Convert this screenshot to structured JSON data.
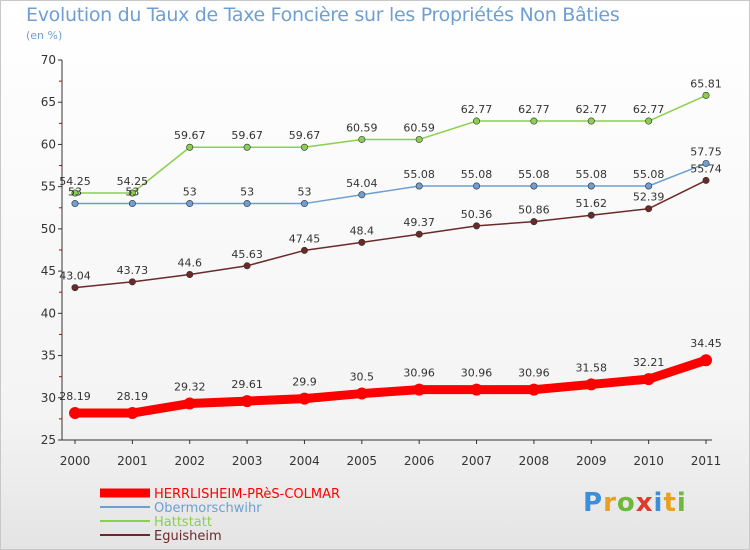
{
  "title": "Evolution du Taux de Taxe Foncière sur les Propriétés Non Bâties",
  "unit": "(en %)",
  "logo": "Proxiti",
  "chart_data": {
    "type": "line",
    "title": "Evolution du Taux de Taxe Foncière sur les Propriétés Non Bâties",
    "ylabel": "(en %)",
    "xlabel": "",
    "ylim": [
      25,
      70
    ],
    "yticks": [
      25,
      30,
      35,
      40,
      45,
      50,
      55,
      60,
      65,
      70
    ],
    "x": [
      "2000",
      "2001",
      "2002",
      "2003",
      "2004",
      "2005",
      "2006",
      "2007",
      "2008",
      "2009",
      "2010",
      "2011"
    ],
    "grid": false,
    "legend_position": "bottom-left",
    "series": [
      {
        "name": "HERRLISHEIM-PRèS-COLMAR",
        "color": "#ff0000",
        "values": [
          28.19,
          28.19,
          29.32,
          29.61,
          29.9,
          30.5,
          30.96,
          30.96,
          30.96,
          31.58,
          32.21,
          34.45
        ],
        "labels": [
          "28.19",
          "28.19",
          "29.32",
          "29.61",
          "29.9",
          "30.5",
          "30.96",
          "30.96",
          "30.96",
          "31.58",
          "32.21",
          "34.45"
        ]
      },
      {
        "name": "Obermorschwihr",
        "color": "#6f9fd0",
        "values": [
          53,
          53,
          53,
          53,
          53,
          54.04,
          55.08,
          55.08,
          55.08,
          55.08,
          55.08,
          57.75
        ],
        "labels": [
          "53",
          "53",
          "53",
          "53",
          "53",
          "54.04",
          "55.08",
          "55.08",
          "55.08",
          "55.08",
          "55.08",
          "57.75"
        ]
      },
      {
        "name": "Hattstatt",
        "color": "#8ccf4d",
        "values": [
          54.25,
          54.25,
          59.67,
          59.67,
          59.67,
          60.59,
          60.59,
          62.77,
          62.77,
          62.77,
          62.77,
          65.81
        ],
        "labels": [
          "54.25",
          "54.25",
          "59.67",
          "59.67",
          "59.67",
          "60.59",
          "60.59",
          "62.77",
          "62.77",
          "62.77",
          "62.77",
          "65.81"
        ]
      },
      {
        "name": "Eguisheim",
        "color": "#6b2a2a",
        "values": [
          43.04,
          43.73,
          44.6,
          45.63,
          47.45,
          48.4,
          49.37,
          50.36,
          50.86,
          51.62,
          52.39,
          55.74
        ],
        "labels": [
          "43.04",
          "43.73",
          "44.6",
          "45.63",
          "47.45",
          "48.4",
          "49.37",
          "50.36",
          "50.86",
          "51.62",
          "52.39",
          "55.74"
        ]
      }
    ]
  },
  "colors": {
    "title": "#6f9fd0",
    "axis": "#333333",
    "axis_minor_ticks": "#cc0000"
  }
}
